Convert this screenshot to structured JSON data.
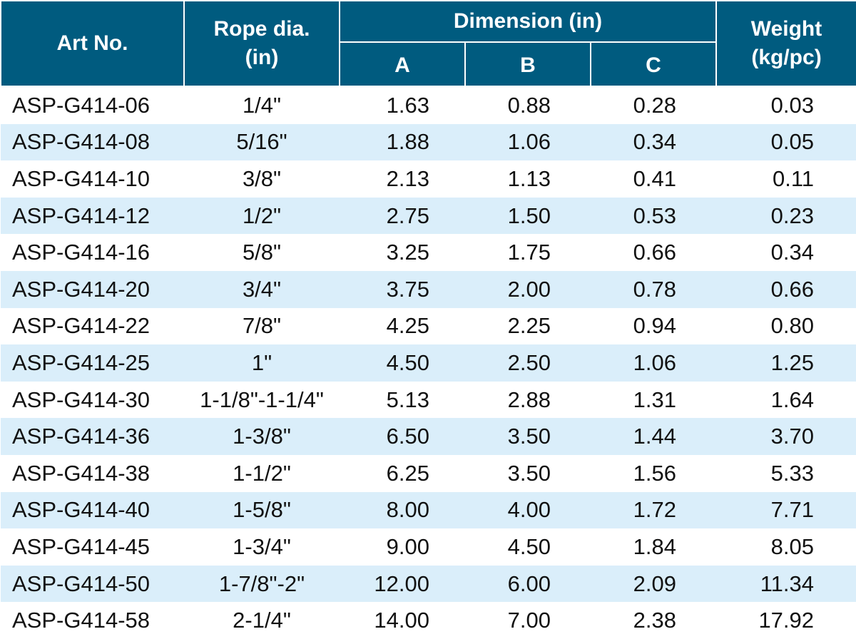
{
  "header": {
    "art_no": "Art No.",
    "rope_dia_line1": "Rope dia.",
    "rope_dia_line2": "(in)",
    "dimension": "Dimension (in)",
    "a": "A",
    "b": "B",
    "c": "C",
    "weight_line1": "Weight",
    "weight_line2": "(kg/pc)"
  },
  "rows": [
    {
      "art": "ASP-G414-06",
      "rope": "1/4\"",
      "a": "1.63",
      "b": "0.88",
      "c": "0.28",
      "w": "0.03"
    },
    {
      "art": "ASP-G414-08",
      "rope": "5/16\"",
      "a": "1.88",
      "b": "1.06",
      "c": "0.34",
      "w": "0.05"
    },
    {
      "art": "ASP-G414-10",
      "rope": "3/8\"",
      "a": "2.13",
      "b": "1.13",
      "c": "0.41",
      "w": "0.11"
    },
    {
      "art": "ASP-G414-12",
      "rope": "1/2\"",
      "a": "2.75",
      "b": "1.50",
      "c": "0.53",
      "w": "0.23"
    },
    {
      "art": "ASP-G414-16",
      "rope": "5/8\"",
      "a": "3.25",
      "b": "1.75",
      "c": "0.66",
      "w": "0.34"
    },
    {
      "art": "ASP-G414-20",
      "rope": "3/4\"",
      "a": "3.75",
      "b": "2.00",
      "c": "0.78",
      "w": "0.66"
    },
    {
      "art": "ASP-G414-22",
      "rope": "7/8\"",
      "a": "4.25",
      "b": "2.25",
      "c": "0.94",
      "w": "0.80"
    },
    {
      "art": "ASP-G414-25",
      "rope": "1\"",
      "a": "4.50",
      "b": "2.50",
      "c": "1.06",
      "w": "1.25"
    },
    {
      "art": "ASP-G414-30",
      "rope": "1-1/8\"-1-1/4\"",
      "a": "5.13",
      "b": "2.88",
      "c": "1.31",
      "w": "1.64"
    },
    {
      "art": "ASP-G414-36",
      "rope": "1-3/8\"",
      "a": "6.50",
      "b": "3.50",
      "c": "1.44",
      "w": "3.70"
    },
    {
      "art": "ASP-G414-38",
      "rope": "1-1/2\"",
      "a": "6.25",
      "b": "3.50",
      "c": "1.56",
      "w": "5.33"
    },
    {
      "art": "ASP-G414-40",
      "rope": "1-5/8\"",
      "a": "8.00",
      "b": "4.00",
      "c": "1.72",
      "w": "7.71"
    },
    {
      "art": "ASP-G414-45",
      "rope": "1-3/4\"",
      "a": "9.00",
      "b": "4.50",
      "c": "1.84",
      "w": "8.05"
    },
    {
      "art": "ASP-G414-50",
      "rope": "1-7/8\"-2\"",
      "a": "12.00",
      "b": "6.00",
      "c": "2.09",
      "w": "11.34"
    },
    {
      "art": "ASP-G414-58",
      "rope": "2-1/4\"",
      "a": "14.00",
      "b": "7.00",
      "c": "2.38",
      "w": "17.92"
    }
  ],
  "colors": {
    "header_bg": "#005b7f",
    "header_text": "#ffffff",
    "row_stripe": "#daeefa",
    "row_plain": "#ffffff"
  }
}
